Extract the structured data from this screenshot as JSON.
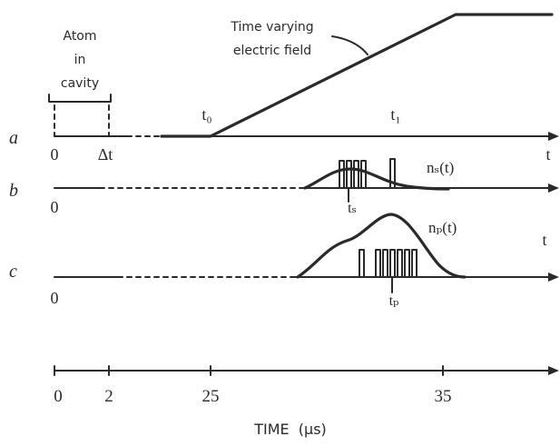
{
  "annotations": {
    "atom_line1": "Atom",
    "atom_line2": "in",
    "atom_line3": "cavity",
    "field_line1": "Time varying",
    "field_line2": "electric field",
    "t0": "t₀",
    "t1": "t₁",
    "delta_t": "Δt"
  },
  "rows": [
    {
      "label": "a",
      "origin": "0",
      "end_label": "t"
    },
    {
      "label": "b",
      "origin": "0",
      "curve_label": "nₛ(t)",
      "time_label": "tₛ"
    },
    {
      "label": "c",
      "origin": "0",
      "curve_label": "nₚ(t)",
      "time_label": "tₚ",
      "end_label": "t"
    }
  ],
  "axis": {
    "ticks": [
      "0",
      "2",
      "25",
      "35"
    ],
    "title": "TIME  (µs)"
  }
}
